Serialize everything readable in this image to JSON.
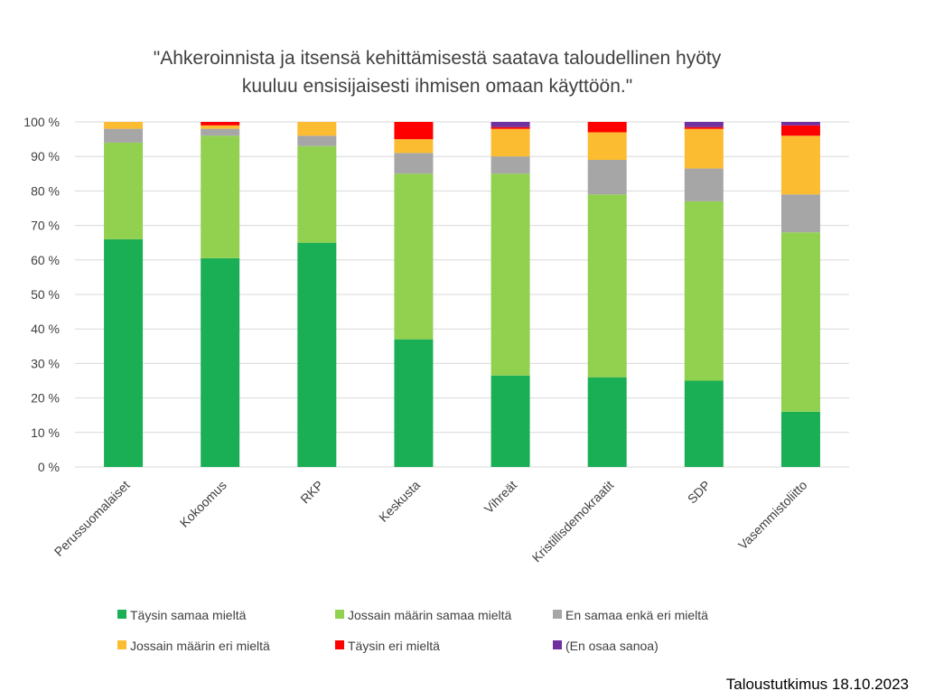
{
  "chart_data": {
    "type": "bar",
    "stacked": true,
    "title_lines": [
      "\"Ahkeroinnista ja itsensä kehittämisestä saatava taloudellinen hyöty",
      "kuuluu ensisijaisesti ihmisen omaan käyttöön.\""
    ],
    "categories": [
      "Perussuomalaiset",
      "Kokoomus",
      "RKP",
      "Keskusta",
      "Vihreät",
      "Kristillisdemokraatit",
      "SDP",
      "Vasemmistoliitto"
    ],
    "y_ticks": [
      "0 %",
      "10 %",
      "20 %",
      "30 %",
      "40 %",
      "50 %",
      "60 %",
      "70 %",
      "80 %",
      "90 %",
      "100 %"
    ],
    "ylim": [
      0,
      100
    ],
    "grid": true,
    "legend_position": "bottom",
    "series": [
      {
        "name": "Täysin samaa mieltä",
        "color": "#1aaf54",
        "values": [
          66,
          60.5,
          65,
          37,
          26.5,
          26,
          25,
          16
        ]
      },
      {
        "name": "Jossain määrin samaa mieltä",
        "color": "#92d050",
        "values": [
          28,
          35.5,
          28,
          48,
          58.5,
          53,
          52,
          52
        ]
      },
      {
        "name": "En samaa enkä eri mieltä",
        "color": "#a6a6a6",
        "values": [
          4,
          2,
          3,
          6,
          5,
          10,
          9.5,
          11
        ]
      },
      {
        "name": "Jossain määrin eri mieltä",
        "color": "#fbbc31",
        "values": [
          2,
          1,
          4,
          4,
          8,
          8,
          11.5,
          17
        ]
      },
      {
        "name": "Täysin eri mieltä",
        "color": "#ff0000",
        "values": [
          0,
          1,
          0,
          5,
          0.5,
          3,
          0.5,
          3
        ]
      },
      {
        "name": "(En osaa sanoa)",
        "color": "#7030a0",
        "values": [
          0,
          0,
          0,
          0,
          1.5,
          0,
          1.5,
          1
        ]
      }
    ]
  },
  "source": "Taloustutkimus 18.10.2023"
}
